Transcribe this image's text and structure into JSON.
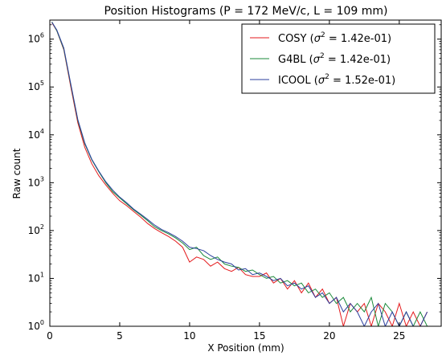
{
  "chart_data": {
    "type": "line",
    "title": "Position Histograms (P = 172 MeV/c, L = 109 mm)",
    "xlabel": "X Position (mm)",
    "ylabel": "Raw count",
    "xlim": [
      0,
      28
    ],
    "ylim": [
      1,
      2500000
    ],
    "yscale": "log",
    "grid": false,
    "legend_position": "top-right",
    "x_ticks": [
      0,
      5,
      10,
      15,
      20,
      25
    ],
    "y_ticks": [
      {
        "value": 1,
        "mantissa": "10",
        "exp": "0"
      },
      {
        "value": 10,
        "mantissa": "10",
        "exp": "1"
      },
      {
        "value": 100,
        "mantissa": "10",
        "exp": "2"
      },
      {
        "value": 1000,
        "mantissa": "10",
        "exp": "3"
      },
      {
        "value": 10000,
        "mantissa": "10",
        "exp": "4"
      },
      {
        "value": 100000,
        "mantissa": "10",
        "exp": "5"
      },
      {
        "value": 1000000,
        "mantissa": "10",
        "exp": "6"
      }
    ],
    "series": [
      {
        "name": "COSY",
        "legend_prefix": "COSY (",
        "sigma_symbol": "σ",
        "sigma_exp": "2",
        "legend_value": " = 1.42e-01)",
        "color": "#e41a1c",
        "x": [
          0.15,
          0.5,
          1.0,
          1.5,
          2.0,
          2.5,
          3.0,
          3.5,
          4.0,
          4.5,
          5.0,
          5.5,
          6.0,
          6.5,
          7.0,
          7.5,
          8.0,
          8.5,
          9.0,
          9.5,
          10.0,
          10.5,
          11.0,
          11.5,
          12.0,
          12.5,
          13.0,
          13.5,
          14.0,
          14.5,
          15.0,
          15.5,
          16.0,
          16.5,
          17.0,
          17.5,
          18.0,
          18.5,
          19.0,
          19.5,
          20.0,
          20.5,
          21.0,
          21.5,
          22.0,
          22.5,
          23.0,
          23.5,
          24.0,
          24.5,
          25.0,
          25.5,
          26.0,
          26.5,
          27.0
        ],
        "values": [
          2200000,
          1500000,
          600000,
          100000,
          18000,
          5500,
          2500,
          1400,
          900,
          600,
          420,
          330,
          250,
          190,
          140,
          110,
          90,
          75,
          60,
          45,
          22,
          28,
          25,
          18,
          22,
          16,
          14,
          17,
          12,
          11,
          11,
          13,
          8,
          10,
          6,
          9,
          5,
          8,
          4,
          6,
          3,
          4,
          1,
          3,
          2,
          3,
          1,
          3,
          2,
          1,
          3,
          1,
          2,
          1,
          2
        ]
      },
      {
        "name": "G4BL",
        "legend_prefix": "G4BL (",
        "sigma_symbol": "σ",
        "sigma_exp": "2",
        "legend_value": " = 1.42e-01)",
        "color": "#1a8a3a",
        "x": [
          0.15,
          0.5,
          1.0,
          1.5,
          2.0,
          2.5,
          3.0,
          3.5,
          4.0,
          4.5,
          5.0,
          5.5,
          6.0,
          6.5,
          7.0,
          7.5,
          8.0,
          8.5,
          9.0,
          9.5,
          10.0,
          10.5,
          11.0,
          11.5,
          12.0,
          12.5,
          13.0,
          13.5,
          14.0,
          14.5,
          15.0,
          15.5,
          16.0,
          16.5,
          17.0,
          17.5,
          18.0,
          18.5,
          19.0,
          19.5,
          20.0,
          20.5,
          21.0,
          21.5,
          22.0,
          22.5,
          23.0,
          23.5,
          24.0,
          24.5,
          25.0,
          25.5,
          26.0,
          26.5,
          27.0
        ],
        "values": [
          2300000,
          1500000,
          620000,
          110000,
          20000,
          6500,
          3000,
          1700,
          1000,
          650,
          480,
          360,
          270,
          210,
          160,
          120,
          100,
          85,
          70,
          55,
          40,
          45,
          30,
          25,
          28,
          20,
          18,
          17,
          14,
          15,
          12,
          10,
          11,
          8,
          9,
          7,
          8,
          5,
          6,
          4,
          5,
          3,
          4,
          2,
          3,
          2,
          4,
          1,
          3,
          2,
          1,
          2,
          1,
          2,
          1
        ]
      },
      {
        "name": "ICOOL",
        "legend_prefix": "ICOOL (",
        "sigma_symbol": "σ",
        "sigma_exp": "2",
        "legend_value": " = 1.52e-01)",
        "color": "#2b3f9e",
        "x": [
          0.15,
          0.5,
          1.0,
          1.5,
          2.0,
          2.5,
          3.0,
          3.5,
          4.0,
          4.5,
          5.0,
          5.5,
          6.0,
          6.5,
          7.0,
          7.5,
          8.0,
          8.5,
          9.0,
          9.5,
          10.0,
          10.5,
          11.0,
          11.5,
          12.0,
          12.5,
          13.0,
          13.5,
          14.0,
          14.5,
          15.0,
          15.5,
          16.0,
          16.5,
          17.0,
          17.5,
          18.0,
          18.5,
          19.0,
          19.5,
          20.0,
          20.5,
          21.0,
          21.5,
          22.0,
          22.5,
          23.0,
          23.5,
          24.0,
          24.5,
          25.0,
          25.5,
          26.0,
          26.5,
          27.0
        ],
        "values": [
          2250000,
          1550000,
          650000,
          115000,
          21000,
          6800,
          3100,
          1750,
          1050,
          700,
          500,
          380,
          280,
          220,
          170,
          130,
          105,
          90,
          75,
          60,
          45,
          42,
          38,
          30,
          25,
          22,
          20,
          15,
          16,
          12,
          13,
          11,
          9,
          10,
          7,
          8,
          6,
          7,
          4,
          5,
          3,
          4,
          2,
          3,
          2,
          1,
          2,
          3,
          1,
          2,
          1,
          2,
          1,
          1,
          2
        ]
      }
    ]
  }
}
